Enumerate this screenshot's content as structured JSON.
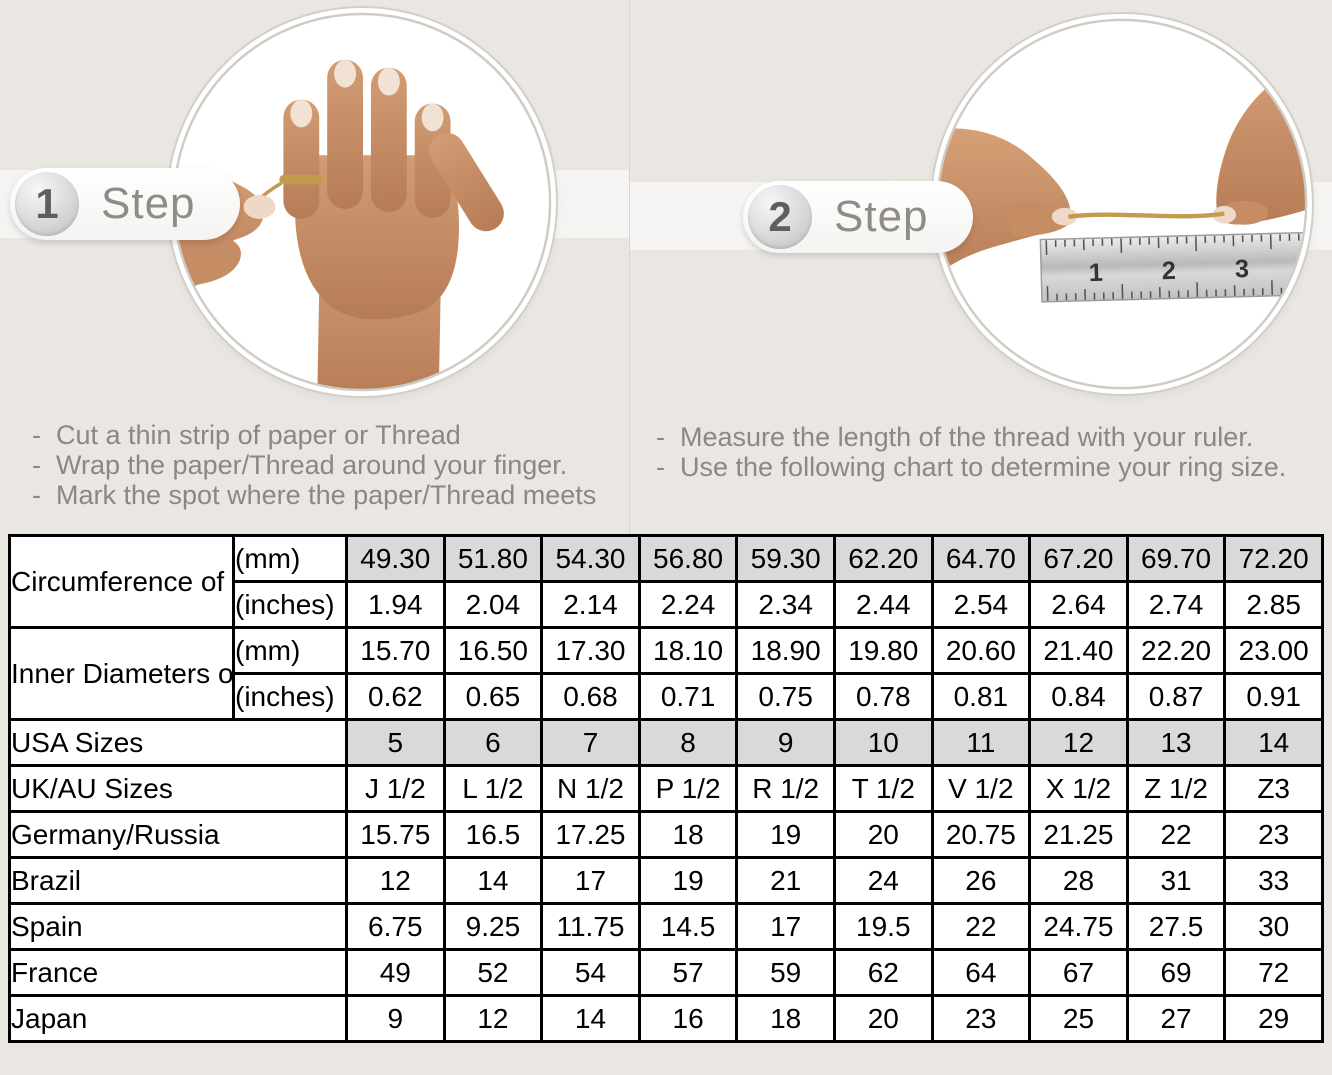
{
  "page": {
    "background": "#eae7e2",
    "bullet_prefix": "-"
  },
  "colors": {
    "shaded_cell": "#d9d9d9",
    "table_border": "#000000",
    "instruction_text": "#8b8781",
    "gold_thread": "#c49a4e"
  },
  "steps": [
    {
      "number": "1",
      "label": "Step",
      "photo": "hand-with-gold-thread-wrapped-around-ring-finger",
      "bullets": [
        "Cut a thin strip of paper or Thread",
        "Wrap the paper/Thread around your finger.",
        "Mark the spot where the paper/Thread meets"
      ]
    },
    {
      "number": "2",
      "label": "Step",
      "photo": "two-hands-measuring-gold-thread-against-steel-ruler",
      "ruler_numbers": [
        "1",
        "2",
        "3"
      ],
      "bullets": [
        "Measure the length of the thread with your ruler.",
        "Use the following chart to determine your ring size."
      ]
    }
  ],
  "table": {
    "header_groups": [
      {
        "label": "Circumference of Your Finger",
        "rows": [
          {
            "unit": "(mm)",
            "shaded": true,
            "values": [
              "49.30",
              "51.80",
              "54.30",
              "56.80",
              "59.30",
              "62.20",
              "64.70",
              "67.20",
              "69.70",
              "72.20"
            ]
          },
          {
            "unit": "(inches)",
            "shaded": false,
            "values": [
              "1.94",
              "2.04",
              "2.14",
              "2.24",
              "2.34",
              "2.44",
              "2.54",
              "2.64",
              "2.74",
              "2.85"
            ]
          }
        ]
      },
      {
        "label": "Inner Diameters of Rings",
        "rows": [
          {
            "unit": "(mm)",
            "shaded": false,
            "values": [
              "15.70",
              "16.50",
              "17.30",
              "18.10",
              "18.90",
              "19.80",
              "20.60",
              "21.40",
              "22.20",
              "23.00"
            ]
          },
          {
            "unit": "(inches)",
            "shaded": false,
            "values": [
              "0.62",
              "0.65",
              "0.68",
              "0.71",
              "0.75",
              "0.78",
              "0.81",
              "0.84",
              "0.87",
              "0.91"
            ]
          }
        ]
      }
    ],
    "size_rows": [
      {
        "label": "USA Sizes",
        "shaded": true,
        "values": [
          "5",
          "6",
          "7",
          "8",
          "9",
          "10",
          "11",
          "12",
          "13",
          "14"
        ]
      },
      {
        "label": "UK/AU Sizes",
        "shaded": false,
        "values": [
          "J 1/2",
          "L 1/2",
          "N 1/2",
          "P 1/2",
          "R 1/2",
          "T 1/2",
          "V 1/2",
          "X 1/2",
          "Z 1/2",
          "Z3"
        ]
      },
      {
        "label": "Germany/Russia",
        "shaded": false,
        "values": [
          "15.75",
          "16.5",
          "17.25",
          "18",
          "19",
          "20",
          "20.75",
          "21.25",
          "22",
          "23"
        ]
      },
      {
        "label": "Brazil",
        "shaded": false,
        "values": [
          "12",
          "14",
          "17",
          "19",
          "21",
          "24",
          "26",
          "28",
          "31",
          "33"
        ]
      },
      {
        "label": "Spain",
        "shaded": false,
        "values": [
          "6.75",
          "9.25",
          "11.75",
          "14.5",
          "17",
          "19.5",
          "22",
          "24.75",
          "27.5",
          "30"
        ]
      },
      {
        "label": "France",
        "shaded": false,
        "values": [
          "49",
          "52",
          "54",
          "57",
          "59",
          "62",
          "64",
          "67",
          "69",
          "72"
        ]
      },
      {
        "label": "Japan",
        "shaded": false,
        "values": [
          "9",
          "12",
          "14",
          "16",
          "18",
          "20",
          "23",
          "25",
          "27",
          "29"
        ]
      }
    ]
  }
}
